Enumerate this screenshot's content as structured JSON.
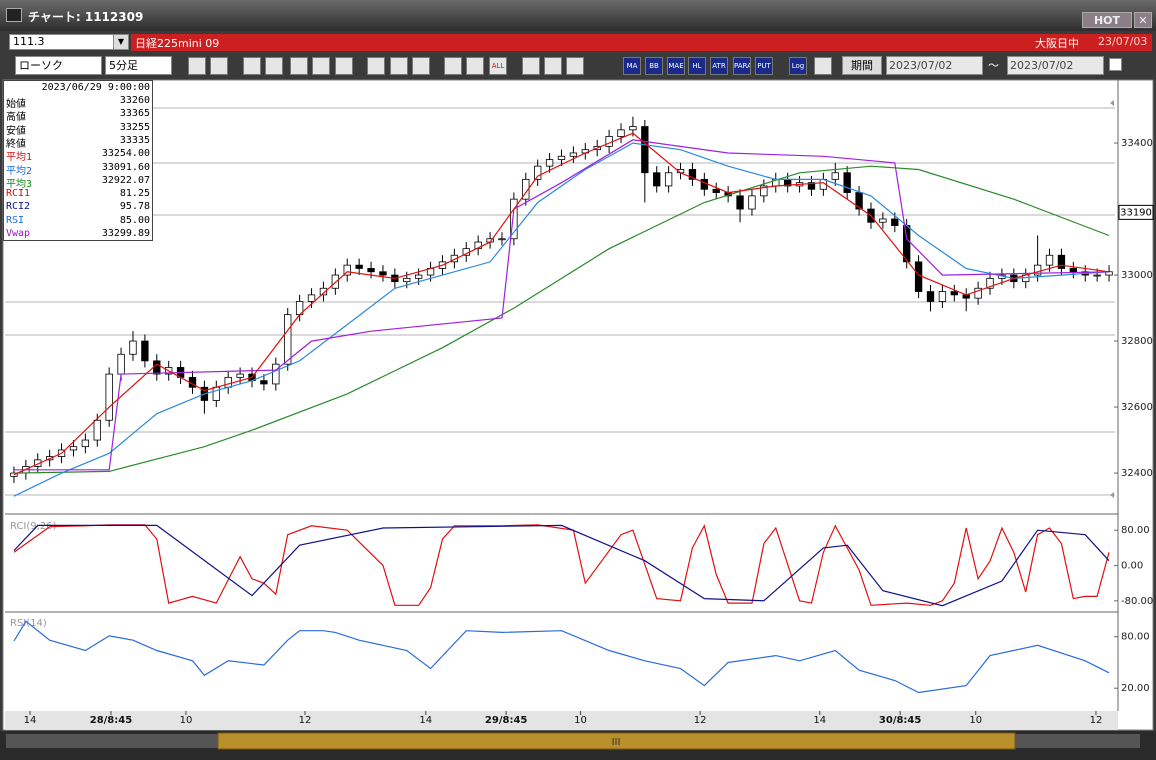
{
  "window": {
    "title": "チャート: 1112309",
    "hot": "HOT",
    "close": "✕"
  },
  "toolbar": {
    "code": "111.3",
    "name": "日経225mini 09",
    "market": "大阪日中",
    "date": "23/07/03",
    "chart_type": "ローソク",
    "interval": "5分足",
    "buttons": [
      "ALL",
      "MA",
      "BB",
      "MAE",
      "HL",
      "ATR",
      "PARA",
      "PUT",
      "Log"
    ],
    "period": "期間",
    "from": "2023/07/02",
    "tilde": "〜",
    "to": "2023/07/02"
  },
  "info": {
    "time": "2023/06/29 9:00:00",
    "rows": [
      {
        "label": "始値",
        "value": "33260",
        "color": "#000"
      },
      {
        "label": "高値",
        "value": "33365",
        "color": "#000"
      },
      {
        "label": "安値",
        "value": "33255",
        "color": "#000"
      },
      {
        "label": "終値",
        "value": "33335",
        "color": "#000"
      },
      {
        "label": "平均1",
        "value": "33254.00",
        "color": "#d01010"
      },
      {
        "label": "平均2",
        "value": "33091.60",
        "color": "#1a6fe0"
      },
      {
        "label": "平均3",
        "value": "32922.07",
        "color": "#1a8a1a"
      },
      {
        "label": "RCI1",
        "value": "81.25",
        "color": "#d01010"
      },
      {
        "label": "RCI2",
        "value": "95.78",
        "color": "#10108a"
      },
      {
        "label": "RSI",
        "value": "85.00",
        "color": "#1a6fe0"
      },
      {
        "label": "Vwap",
        "value": "33299.89",
        "color": "#9a10c8"
      }
    ]
  },
  "chart_data": [
    {
      "type": "candlestick",
      "xlim": [
        -0.5,
        92.5
      ],
      "ylim": [
        32282,
        33585
      ],
      "yticks": [
        32400,
        32600,
        32800,
        33000,
        33400
      ],
      "last_price": 33190,
      "candles": [
        [
          32390,
          32420,
          32370,
          32400
        ],
        [
          32400,
          32440,
          32380,
          32420
        ],
        [
          32420,
          32460,
          32400,
          32440
        ],
        [
          32440,
          32470,
          32420,
          32450
        ],
        [
          32450,
          32490,
          32430,
          32470
        ],
        [
          32470,
          32500,
          32450,
          32480
        ],
        [
          32480,
          32520,
          32460,
          32500
        ],
        [
          32500,
          32580,
          32480,
          32560
        ],
        [
          32560,
          32720,
          32540,
          32700
        ],
        [
          32700,
          32780,
          32680,
          32760
        ],
        [
          32760,
          32830,
          32740,
          32800
        ],
        [
          32800,
          32820,
          32720,
          32740
        ],
        [
          32740,
          32760,
          32680,
          32700
        ],
        [
          32700,
          32740,
          32680,
          32720
        ],
        [
          32720,
          32740,
          32670,
          32690
        ],
        [
          32690,
          32710,
          32640,
          32660
        ],
        [
          32660,
          32680,
          32580,
          32620
        ],
        [
          32620,
          32680,
          32600,
          32660
        ],
        [
          32660,
          32710,
          32640,
          32690
        ],
        [
          32690,
          32720,
          32670,
          32700
        ],
        [
          32700,
          32720,
          32660,
          32680
        ],
        [
          32680,
          32700,
          32650,
          32670
        ],
        [
          32670,
          32750,
          32650,
          32730
        ],
        [
          32730,
          32900,
          32710,
          32880
        ],
        [
          32880,
          32940,
          32860,
          32920
        ],
        [
          32920,
          32960,
          32900,
          32940
        ],
        [
          32940,
          32980,
          32920,
          32960
        ],
        [
          32960,
          33020,
          32940,
          33000
        ],
        [
          33000,
          33050,
          32980,
          33030
        ],
        [
          33030,
          33050,
          33000,
          33020
        ],
        [
          33020,
          33040,
          32990,
          33010
        ],
        [
          33010,
          33030,
          32980,
          33000
        ],
        [
          33000,
          33020,
          32960,
          32980
        ],
        [
          32980,
          33010,
          32960,
          32990
        ],
        [
          32990,
          33020,
          32970,
          33000
        ],
        [
          33000,
          33040,
          32980,
          33020
        ],
        [
          33020,
          33060,
          33000,
          33040
        ],
        [
          33040,
          33080,
          33020,
          33060
        ],
        [
          33060,
          33100,
          33040,
          33080
        ],
        [
          33080,
          33120,
          33060,
          33100
        ],
        [
          33100,
          33130,
          33080,
          33110
        ],
        [
          33110,
          33130,
          33090,
          33110
        ],
        [
          33110,
          33250,
          33090,
          33230
        ],
        [
          33230,
          33310,
          33210,
          33290
        ],
        [
          33290,
          33350,
          33270,
          33330
        ],
        [
          33330,
          33370,
          33310,
          33350
        ],
        [
          33350,
          33380,
          33330,
          33360
        ],
        [
          33360,
          33390,
          33340,
          33370
        ],
        [
          33370,
          33400,
          33350,
          33380
        ],
        [
          33380,
          33410,
          33360,
          33390
        ],
        [
          33390,
          33440,
          33370,
          33420
        ],
        [
          33420,
          33460,
          33400,
          33440
        ],
        [
          33440,
          33480,
          33420,
          33450
        ],
        [
          33450,
          33470,
          33220,
          33310
        ],
        [
          33310,
          33330,
          33250,
          33270
        ],
        [
          33270,
          33330,
          33250,
          33310
        ],
        [
          33310,
          33340,
          33290,
          33320
        ],
        [
          33320,
          33340,
          33270,
          33290
        ],
        [
          33290,
          33310,
          33240,
          33260
        ],
        [
          33260,
          33280,
          33230,
          33250
        ],
        [
          33250,
          33270,
          33220,
          33240
        ],
        [
          33240,
          33260,
          33160,
          33200
        ],
        [
          33200,
          33260,
          33180,
          33240
        ],
        [
          33240,
          33290,
          33220,
          33270
        ],
        [
          33270,
          33310,
          33250,
          33290
        ],
        [
          33290,
          33310,
          33250,
          33270
        ],
        [
          33270,
          33300,
          33250,
          33280
        ],
        [
          33280,
          33300,
          33240,
          33260
        ],
        [
          33260,
          33310,
          33240,
          33290
        ],
        [
          33290,
          33340,
          33270,
          33310
        ],
        [
          33310,
          33330,
          33230,
          33250
        ],
        [
          33250,
          33270,
          33180,
          33200
        ],
        [
          33200,
          33220,
          33140,
          33160
        ],
        [
          33160,
          33190,
          33140,
          33170
        ],
        [
          33170,
          33190,
          33130,
          33150
        ],
        [
          33150,
          33170,
          33020,
          33040
        ],
        [
          33040,
          33060,
          32930,
          32950
        ],
        [
          32950,
          32970,
          32890,
          32920
        ],
        [
          32920,
          32970,
          32900,
          32950
        ],
        [
          32950,
          32970,
          32920,
          32940
        ],
        [
          32940,
          32960,
          32890,
          32930
        ],
        [
          32930,
          32980,
          32910,
          32960
        ],
        [
          32960,
          33010,
          32940,
          32990
        ],
        [
          32990,
          33020,
          32970,
          33000
        ],
        [
          33000,
          33020,
          32960,
          32980
        ],
        [
          32980,
          33020,
          32960,
          33000
        ],
        [
          33000,
          33120,
          32980,
          33030
        ],
        [
          33030,
          33080,
          33010,
          33060
        ],
        [
          33060,
          33080,
          33000,
          33020
        ],
        [
          33020,
          33040,
          32990,
          33010
        ],
        [
          33010,
          33030,
          32980,
          33000
        ],
        [
          33000,
          33020,
          32980,
          33000
        ],
        [
          33000,
          33030,
          32980,
          33010
        ]
      ],
      "series": [
        {
          "color": "#2a8a2a",
          "x": [
            0,
            8,
            16,
            20,
            28,
            36,
            42,
            50,
            58,
            66,
            72,
            76,
            84,
            92
          ],
          "values": [
            32400,
            32405,
            32480,
            32530,
            32640,
            32780,
            32900,
            33080,
            33220,
            33310,
            33330,
            33320,
            33230,
            33120
          ]
        },
        {
          "color": "#2a8ae0",
          "x": [
            0,
            4,
            8,
            12,
            16,
            20,
            24,
            28,
            32,
            36,
            40,
            44,
            48,
            52,
            56,
            60,
            64,
            68,
            72,
            76,
            80,
            84,
            88,
            92
          ],
          "values": [
            32330,
            32400,
            32460,
            32580,
            32640,
            32680,
            32740,
            32850,
            32960,
            33000,
            33040,
            33220,
            33320,
            33400,
            33380,
            33330,
            33290,
            33290,
            33240,
            33120,
            33020,
            32990,
            33000,
            33010
          ]
        },
        {
          "color": "#a020e0",
          "x": [
            0,
            8,
            9,
            22,
            25,
            30,
            41,
            42,
            46,
            52,
            60,
            68,
            74,
            75,
            78,
            92
          ],
          "values": [
            32410,
            32410,
            32700,
            32712,
            32800,
            32830,
            32870,
            33200,
            33280,
            33410,
            33370,
            33360,
            33340,
            33110,
            33000,
            33010
          ]
        },
        {
          "color": "#e01010",
          "x": [
            0,
            4,
            8,
            12,
            16,
            20,
            24,
            28,
            32,
            36,
            40,
            44,
            48,
            52,
            56,
            60,
            64,
            68,
            72,
            76,
            80,
            84,
            88,
            92
          ],
          "values": [
            32395,
            32460,
            32600,
            32730,
            32650,
            32690,
            32880,
            33010,
            32990,
            33030,
            33100,
            33300,
            33370,
            33430,
            33310,
            33250,
            33270,
            33280,
            33180,
            33000,
            32940,
            32990,
            33030,
            33010
          ]
        }
      ]
    },
    {
      "type": "line",
      "title": "RCI(9,26)",
      "xlim": [
        -0.5,
        92.5
      ],
      "ylim": [
        -103,
        110
      ],
      "yticks": [
        {
          "value": 80,
          "label": "80.00"
        },
        {
          "value": 0,
          "label": "0.00"
        },
        {
          "value": -80,
          "label": "-80.00"
        }
      ],
      "series": [
        {
          "color": "#e01010",
          "x": [
            0,
            3,
            6,
            8,
            11,
            12,
            13,
            15,
            17,
            19,
            20,
            21,
            22,
            23,
            25,
            28,
            31,
            32,
            34,
            35,
            36,
            37,
            41,
            44,
            47,
            48,
            51,
            52,
            54,
            56,
            57,
            58,
            59,
            60,
            62,
            63,
            64,
            66,
            67,
            68,
            69,
            70,
            71,
            72,
            75,
            77,
            78,
            79,
            80,
            81,
            82,
            83,
            84,
            85,
            86,
            87,
            88,
            89,
            90,
            91,
            92
          ],
          "values": [
            30,
            88,
            90,
            92,
            92,
            60,
            -85,
            -70,
            -85,
            20,
            -30,
            -40,
            -65,
            70,
            90,
            80,
            0,
            -90,
            -90,
            -50,
            60,
            90,
            90,
            92,
            80,
            -40,
            70,
            80,
            -75,
            -80,
            40,
            90,
            -20,
            -85,
            -85,
            50,
            85,
            -80,
            -85,
            30,
            90,
            40,
            -10,
            -90,
            -85,
            -90,
            -80,
            -40,
            85,
            -30,
            10,
            85,
            30,
            -60,
            70,
            85,
            50,
            -75,
            -70,
            -70,
            30
          ]
        },
        {
          "color": "#10108a",
          "x": [
            0,
            2,
            12,
            20,
            24,
            31,
            46,
            53,
            58,
            63,
            68,
            70,
            73,
            78,
            83,
            86,
            90,
            92
          ],
          "values": [
            34,
            91,
            91,
            -68,
            46,
            85,
            91,
            11,
            -75,
            -80,
            40,
            46,
            -57,
            -91,
            -35,
            80,
            70,
            11
          ]
        }
      ]
    },
    {
      "type": "line",
      "title": "RSI(14)",
      "xlim": [
        -0.5,
        92.5
      ],
      "ylim": [
        -5.4,
        106.5
      ],
      "yticks": [
        {
          "value": 80,
          "label": "80.00"
        },
        {
          "value": 20,
          "label": "20.00"
        }
      ],
      "xticks": [
        {
          "value": 1.35,
          "label": "14"
        },
        {
          "value": 8.15,
          "label": "28/8:45"
        },
        {
          "value": 14.45,
          "label": "10"
        },
        {
          "value": 24.45,
          "label": "12"
        },
        {
          "value": 34.6,
          "label": "14"
        },
        {
          "value": 41.35,
          "label": "29/8:45"
        },
        {
          "value": 47.6,
          "label": "10"
        },
        {
          "value": 57.65,
          "label": "12"
        },
        {
          "value": 67.7,
          "label": "14"
        },
        {
          "value": 74.45,
          "label": "30/8:45"
        },
        {
          "value": 80.8,
          "label": "10"
        },
        {
          "value": 90.9,
          "label": "12"
        }
      ],
      "series": [
        {
          "color": "#2a6ae0",
          "x": [
            0,
            1,
            3,
            6,
            8,
            10,
            12,
            15,
            16,
            18,
            21,
            23,
            24,
            26,
            27,
            29,
            33,
            35,
            38,
            41,
            46,
            50,
            53,
            56,
            58,
            60,
            64,
            66,
            69,
            71,
            74,
            76,
            80,
            82,
            86,
            90,
            92
          ],
          "values": [
            75,
            98,
            76,
            64,
            81,
            76,
            64,
            52,
            35,
            52,
            47,
            76,
            87,
            87,
            85,
            76,
            64,
            43,
            87,
            85,
            87,
            64,
            52,
            43,
            23,
            50,
            58,
            52,
            64,
            41,
            29,
            15,
            23,
            58,
            70,
            52,
            38
          ]
        }
      ]
    }
  ]
}
